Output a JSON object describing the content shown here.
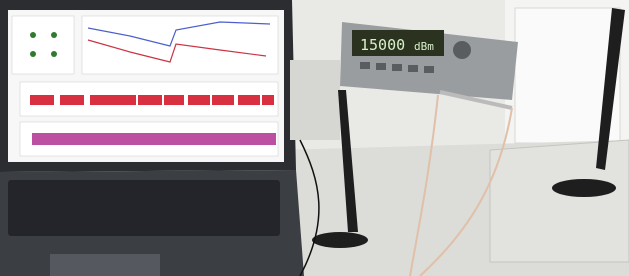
{
  "instrument_display": {
    "reading": "15000",
    "unit": "dBm"
  }
}
